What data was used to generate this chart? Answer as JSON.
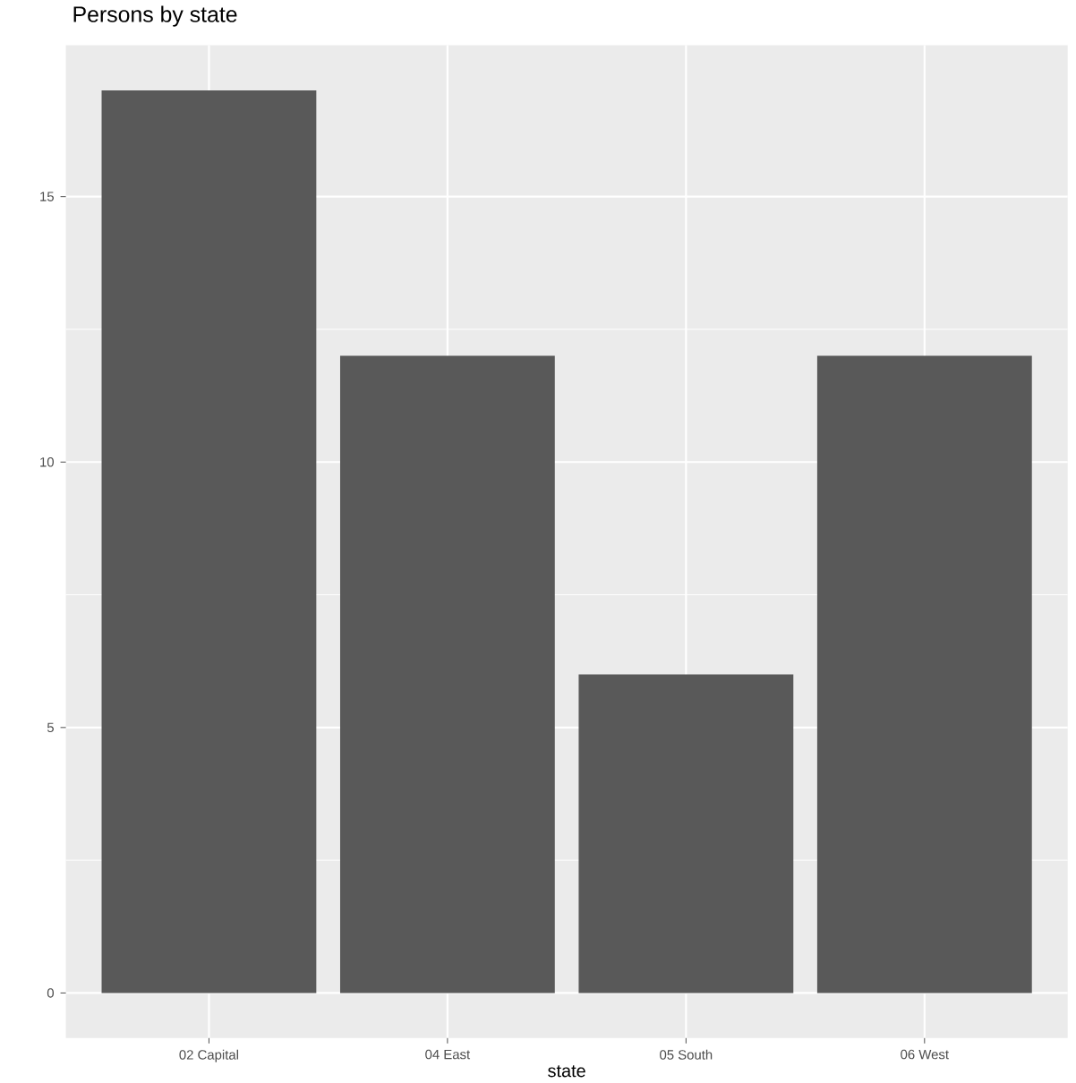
{
  "chart_data": {
    "type": "bar",
    "title": "Persons by state",
    "xlabel": "state",
    "categories": [
      "02 Capital",
      "04 East",
      "05 South",
      "06 West"
    ],
    "values": [
      17,
      12,
      6,
      12
    ],
    "color": "#595959",
    "ylim": [
      -0.85,
      17.85
    ],
    "yticks": [
      0,
      5,
      10,
      15
    ],
    "grid": true
  }
}
